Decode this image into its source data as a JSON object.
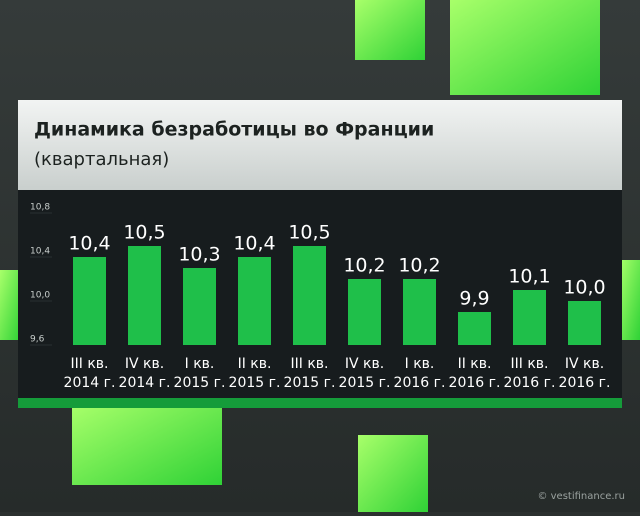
{
  "chart_data": {
    "type": "bar",
    "title": "Динамика безработицы во Франции",
    "subtitle": "(квартальная)",
    "categories": [
      [
        "III кв.",
        "2014 г."
      ],
      [
        "IV кв.",
        "2014 г."
      ],
      [
        "I кв.",
        "2015 г."
      ],
      [
        "II кв.",
        "2015 г."
      ],
      [
        "III кв.",
        "2015 г."
      ],
      [
        "IV кв.",
        "2015 г."
      ],
      [
        "I кв.",
        "2016 г."
      ],
      [
        "II кв.",
        "2016 г."
      ],
      [
        "III кв.",
        "2016 г."
      ],
      [
        "IV кв.",
        "2016 г."
      ]
    ],
    "values": [
      10.4,
      10.5,
      10.3,
      10.4,
      10.5,
      10.2,
      10.2,
      9.9,
      10.1,
      10.0
    ],
    "value_labels": [
      "10,4",
      "10,5",
      "10,3",
      "10,4",
      "10,5",
      "10,2",
      "10,2",
      "9,9",
      "10,1",
      "10,0"
    ],
    "color": "#1fbf4a",
    "ylim": [
      9.6,
      10.8
    ],
    "yticks": [
      {
        "value": 9.6,
        "label": "9,6"
      },
      {
        "value": 10.0,
        "label": "10,0"
      },
      {
        "value": 10.4,
        "label": "10,4"
      },
      {
        "value": 10.8,
        "label": "10,8"
      }
    ],
    "watermark": "© vestifinance.ru"
  }
}
